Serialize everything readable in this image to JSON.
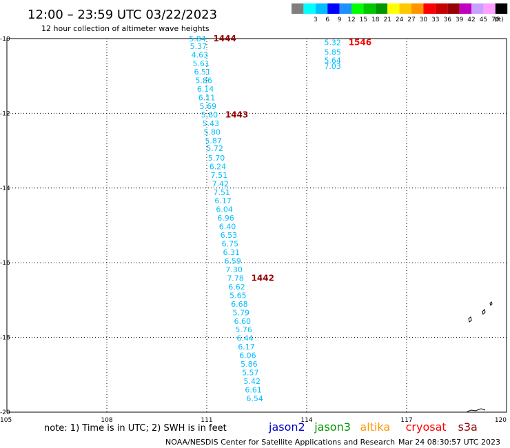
{
  "header": {
    "title": "12:00 – 23:59 UTC 03/22/2023",
    "subtitle": "12 hour collection of altimeter wave heights"
  },
  "legend": {
    "unit": "(ft)",
    "bins": [
      {
        "label": "",
        "color": "#7f7f7f"
      },
      {
        "label": "3",
        "color": "#00ffff"
      },
      {
        "label": "6",
        "color": "#00bfff"
      },
      {
        "label": "9",
        "color": "#0000ff"
      },
      {
        "label": "12",
        "color": "#1e90ff"
      },
      {
        "label": "15",
        "color": "#00ff00"
      },
      {
        "label": "18",
        "color": "#00c800"
      },
      {
        "label": "21",
        "color": "#009600"
      },
      {
        "label": "24",
        "color": "#ffff00"
      },
      {
        "label": "27",
        "color": "#ffc800"
      },
      {
        "label": "30",
        "color": "#ff9600"
      },
      {
        "label": "33",
        "color": "#ff0000"
      },
      {
        "label": "36",
        "color": "#c80000"
      },
      {
        "label": "39",
        "color": "#960000"
      },
      {
        "label": "42",
        "color": "#c000c0"
      },
      {
        "label": "45",
        "color": "#c8a0ff"
      },
      {
        "label": "70",
        "color": "#ffa0ff"
      },
      {
        "label": "",
        "color": "#000000"
      }
    ]
  },
  "footer": {
    "note": "note: 1) Time is in UTC; 2) SWH is in feet",
    "satellites": [
      {
        "name": "jason2",
        "color": "#0000cc"
      },
      {
        "name": "jason3",
        "color": "#009600"
      },
      {
        "name": "altika",
        "color": "#ff9600"
      },
      {
        "name": "cryosat",
        "color": "#ff0000"
      },
      {
        "name": "s3a",
        "color": "#960000"
      }
    ],
    "credit": "NOAA/NESDIS Center for Satellite Applications and Research",
    "timestamp": "Mar 24 08:30:57 UTC 2023"
  },
  "chart_data": {
    "type": "scatter",
    "x_range": [
      105,
      120
    ],
    "y_range": [
      -20,
      -10
    ],
    "x_ticks": [
      "105",
      "108",
      "111",
      "114",
      "117",
      "120"
    ],
    "y_ticks": [
      "-10",
      "-12",
      "-14",
      "-16",
      "-18",
      "-20"
    ],
    "grid": true,
    "point_color": "#00bfff",
    "tracks": [
      {
        "time_label": "1444",
        "label_color": "#960000",
        "points": [
          {
            "x": 110.72,
            "y": -10.0,
            "v": "5.84"
          },
          {
            "x": 110.75,
            "y": -10.2,
            "v": "5.37"
          },
          {
            "x": 110.79,
            "y": -10.43,
            "v": "4.63"
          },
          {
            "x": 110.83,
            "y": -10.66,
            "v": "5.61"
          },
          {
            "x": 110.87,
            "y": -10.89,
            "v": "6.51"
          },
          {
            "x": 110.91,
            "y": -11.12,
            "v": "5.86"
          },
          {
            "x": 110.96,
            "y": -11.35,
            "v": "6.14"
          },
          {
            "x": 111.0,
            "y": -11.58,
            "v": "6.11"
          },
          {
            "x": 111.04,
            "y": -11.81,
            "v": "5.69"
          }
        ]
      },
      {
        "time_label": "1443",
        "label_color": "#960000",
        "points": [
          {
            "x": 111.08,
            "y": -12.04,
            "v": "5.60"
          },
          {
            "x": 111.12,
            "y": -12.27,
            "v": "5.43"
          },
          {
            "x": 111.16,
            "y": -12.5,
            "v": "5.80"
          },
          {
            "x": 111.2,
            "y": -12.73,
            "v": "5.87"
          },
          {
            "x": 111.24,
            "y": -12.93,
            "v": "5.72"
          },
          {
            "x": 111.29,
            "y": -13.19,
            "v": "5.70"
          },
          {
            "x": 111.33,
            "y": -13.42,
            "v": "6.24"
          },
          {
            "x": 111.37,
            "y": -13.65,
            "v": "7.51"
          },
          {
            "x": 111.41,
            "y": -13.88,
            "v": "7.42"
          },
          {
            "x": 111.45,
            "y": -14.11,
            "v": "7.51"
          },
          {
            "x": 111.49,
            "y": -14.34,
            "v": "6.17"
          },
          {
            "x": 111.53,
            "y": -14.57,
            "v": "6.04"
          },
          {
            "x": 111.57,
            "y": -14.8,
            "v": "6.96"
          },
          {
            "x": 111.62,
            "y": -15.03,
            "v": "6.40"
          },
          {
            "x": 111.66,
            "y": -15.26,
            "v": "6.53"
          },
          {
            "x": 111.7,
            "y": -15.49,
            "v": "6.75"
          },
          {
            "x": 111.74,
            "y": -15.72,
            "v": "6.31"
          },
          {
            "x": 111.78,
            "y": -15.95,
            "v": "6.59"
          },
          {
            "x": 111.82,
            "y": -16.18,
            "v": "7.30"
          }
        ]
      },
      {
        "time_label": "1442",
        "label_color": "#960000",
        "points": [
          {
            "x": 111.86,
            "y": -16.41,
            "v": "7.78"
          },
          {
            "x": 111.9,
            "y": -16.64,
            "v": "6.62"
          },
          {
            "x": 111.94,
            "y": -16.87,
            "v": "5.65"
          },
          {
            "x": 111.98,
            "y": -17.1,
            "v": "6.68"
          },
          {
            "x": 112.03,
            "y": -17.33,
            "v": "5.79"
          },
          {
            "x": 112.07,
            "y": -17.56,
            "v": "6.60"
          },
          {
            "x": 112.11,
            "y": -17.79,
            "v": "5.76"
          },
          {
            "x": 112.15,
            "y": -18.02,
            "v": "6.44"
          },
          {
            "x": 112.19,
            "y": -18.25,
            "v": "6.17"
          },
          {
            "x": 112.23,
            "y": -18.48,
            "v": "6.06"
          },
          {
            "x": 112.27,
            "y": -18.71,
            "v": "5.86"
          },
          {
            "x": 112.31,
            "y": -18.94,
            "v": "5.57"
          },
          {
            "x": 112.36,
            "y": -19.17,
            "v": "5.42"
          },
          {
            "x": 112.4,
            "y": -19.4,
            "v": "6.61"
          },
          {
            "x": 112.44,
            "y": -19.63,
            "v": "6.54"
          }
        ]
      },
      {
        "time_label": "1546",
        "label_color": "#ff0000",
        "points": [
          {
            "x": 114.78,
            "y": -10.1,
            "v": "5.32"
          },
          {
            "x": 114.78,
            "y": -10.36,
            "v": "5.85"
          },
          {
            "x": 114.78,
            "y": -10.58,
            "v": "5.64"
          },
          {
            "x": 114.78,
            "y": -10.74,
            "v": "7.03"
          }
        ]
      }
    ]
  }
}
